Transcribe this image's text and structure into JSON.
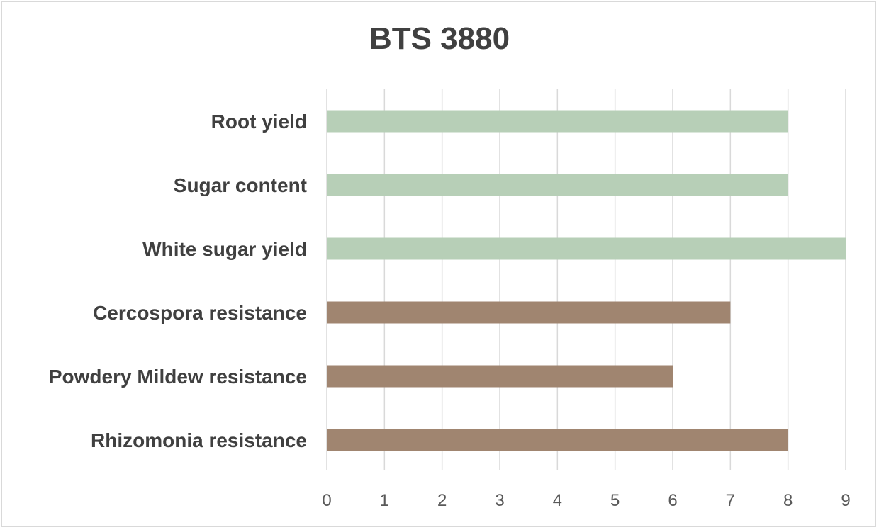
{
  "chart_data": {
    "type": "bar",
    "orientation": "horizontal",
    "title": "BTS 3880",
    "xlabel": "",
    "ylabel": "",
    "categories": [
      "Root yield",
      "Sugar content",
      "White sugar yield",
      "Cercospora resistance",
      "Powdery Mildew resistance",
      "Rhizomonia resistance"
    ],
    "values": [
      8,
      8,
      9,
      7,
      6,
      8
    ],
    "bar_colors": [
      "#b7cfb7",
      "#b7cfb7",
      "#b7cfb7",
      "#a08570",
      "#a08570",
      "#a08570"
    ],
    "xlim": [
      0,
      9
    ],
    "ticks": [
      "0",
      "1",
      "2",
      "3",
      "4",
      "5",
      "6",
      "7",
      "8",
      "9"
    ],
    "grid": "vertical",
    "legend": "none"
  }
}
